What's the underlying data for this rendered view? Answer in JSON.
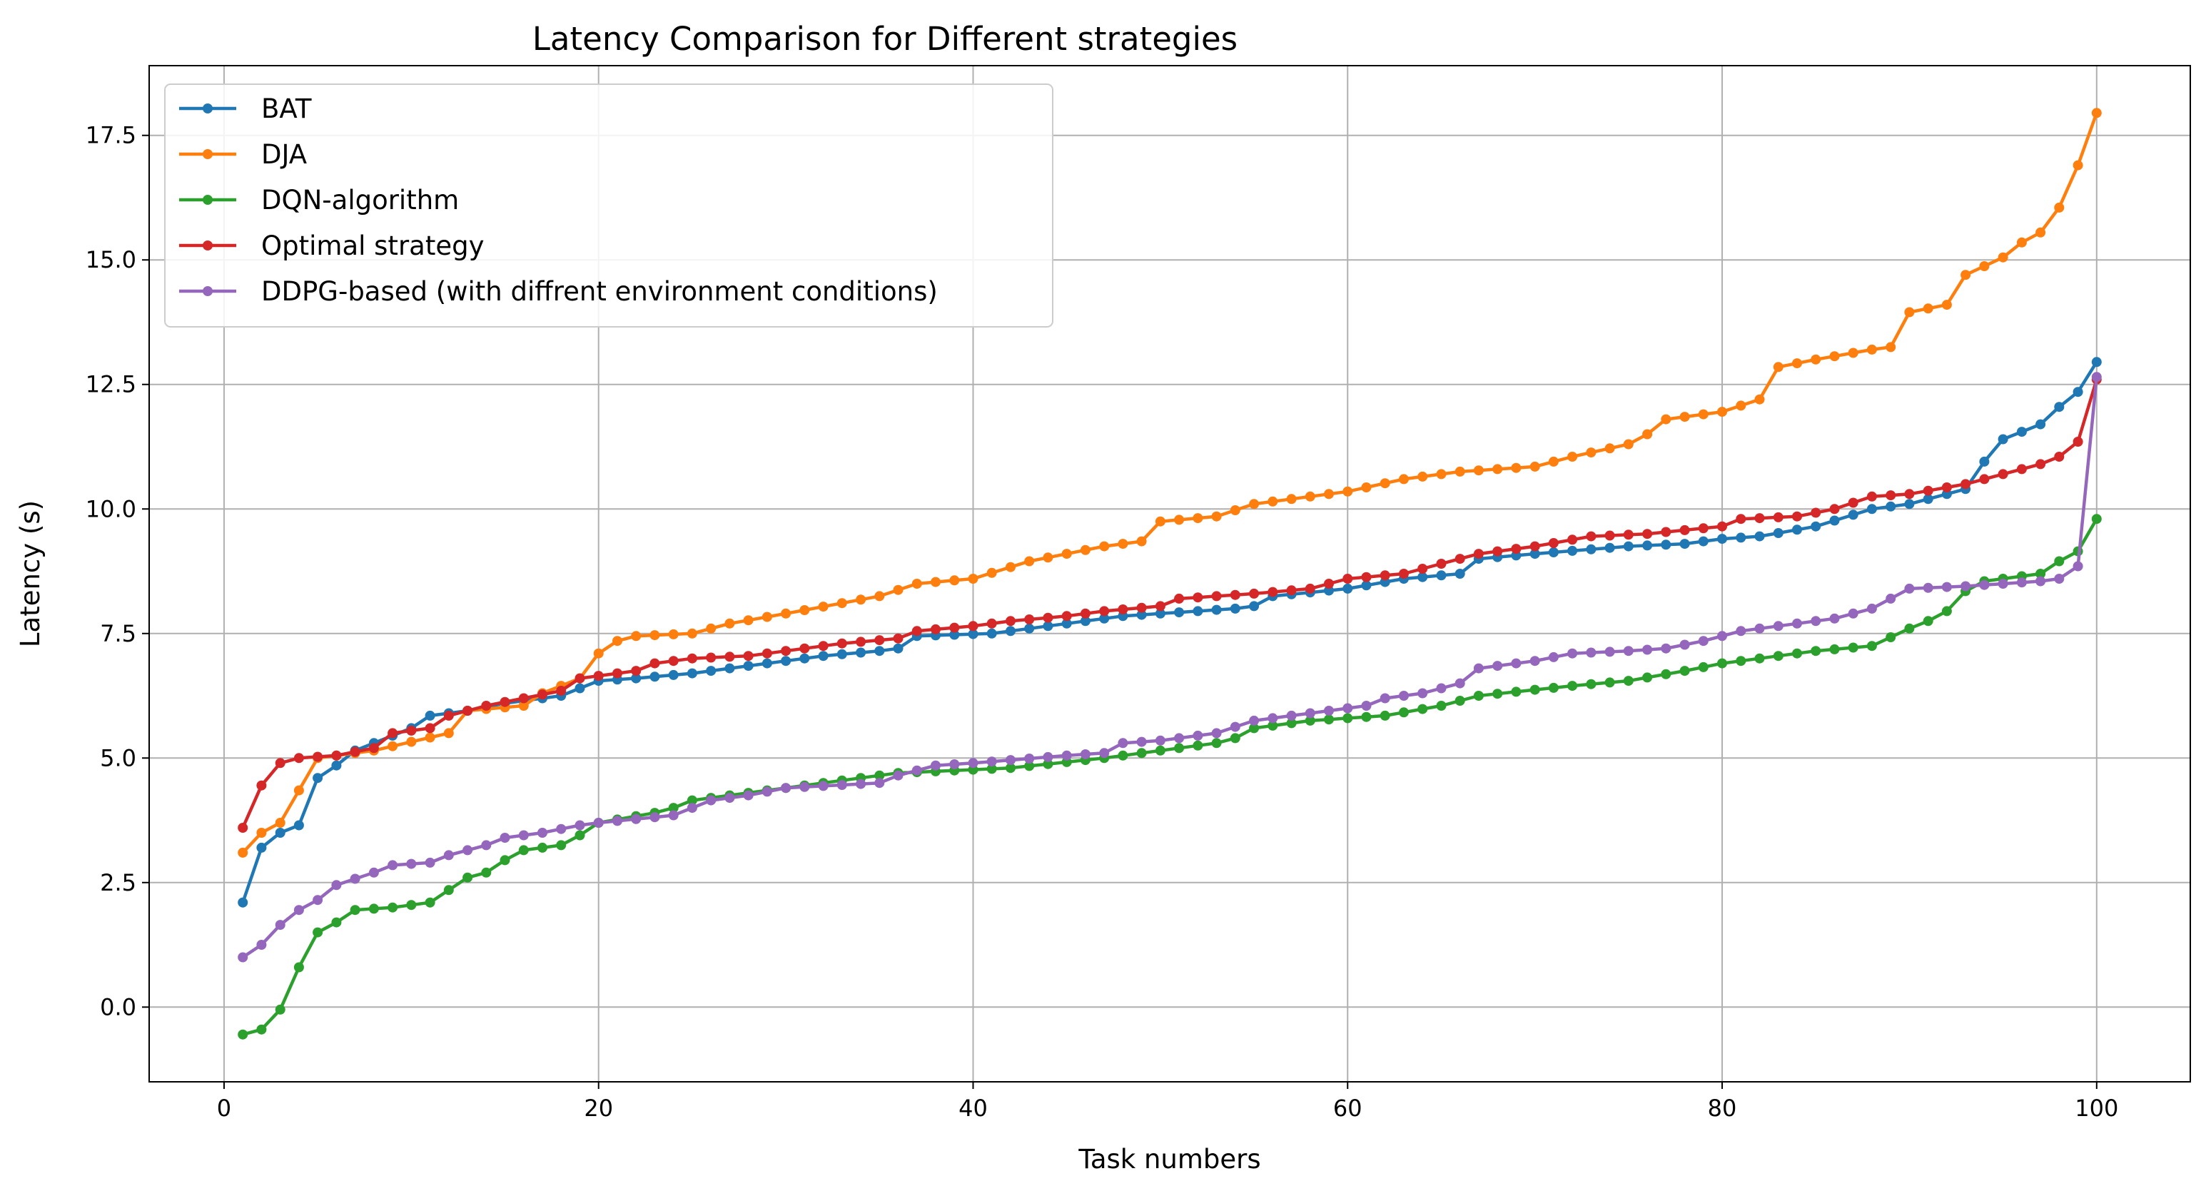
{
  "chart_data": {
    "type": "line",
    "title": "Latency Comparison for Different strategies",
    "xlabel": "Task numbers",
    "ylabel": "Latency (s)",
    "xlim": [
      -4,
      105
    ],
    "ylim": [
      -1.5,
      18.9
    ],
    "xticks": [
      0,
      20,
      40,
      60,
      80,
      100
    ],
    "xtick_labels": [
      "0",
      "20",
      "40",
      "60",
      "80",
      "100"
    ],
    "yticks": [
      0,
      2.5,
      5,
      7.5,
      10,
      12.5,
      15,
      17.5
    ],
    "ytick_labels": [
      "0.0",
      "2.5",
      "5.0",
      "7.5",
      "10.0",
      "12.5",
      "15.0",
      "17.5"
    ],
    "grid": true,
    "legend_position": "top-left",
    "series": [
      {
        "name": "BAT",
        "color": "#1f77b4",
        "anchors": [
          [
            1,
            2.1
          ],
          [
            2,
            3.2
          ],
          [
            3,
            3.5
          ],
          [
            4,
            3.65
          ],
          [
            5,
            4.6
          ],
          [
            6,
            4.85
          ],
          [
            7,
            5.15
          ],
          [
            8,
            5.3
          ],
          [
            10,
            5.6
          ],
          [
            11,
            5.85
          ],
          [
            12,
            5.9
          ],
          [
            13,
            5.95
          ],
          [
            15,
            6.1
          ],
          [
            18,
            6.25
          ],
          [
            20,
            6.55
          ],
          [
            22,
            6.6
          ],
          [
            25,
            6.7
          ],
          [
            28,
            6.85
          ],
          [
            30,
            6.95
          ],
          [
            32,
            7.05
          ],
          [
            35,
            7.15
          ],
          [
            36,
            7.2
          ],
          [
            37,
            7.45
          ],
          [
            41,
            7.5
          ],
          [
            42,
            7.55
          ],
          [
            45,
            7.7
          ],
          [
            48,
            7.85
          ],
          [
            50,
            7.9
          ],
          [
            54,
            8.0
          ],
          [
            55,
            8.05
          ],
          [
            56,
            8.25
          ],
          [
            60,
            8.4
          ],
          [
            63,
            8.6
          ],
          [
            66,
            8.7
          ],
          [
            67,
            9.0
          ],
          [
            70,
            9.1
          ],
          [
            75,
            9.25
          ],
          [
            78,
            9.3
          ],
          [
            80,
            9.4
          ],
          [
            82,
            9.45
          ],
          [
            85,
            9.65
          ],
          [
            88,
            10.0
          ],
          [
            90,
            10.1
          ],
          [
            93,
            10.4
          ],
          [
            94,
            10.95
          ],
          [
            95,
            11.4
          ],
          [
            97,
            11.7
          ],
          [
            98,
            12.05
          ],
          [
            99,
            12.35
          ],
          [
            100,
            12.95
          ]
        ]
      },
      {
        "name": "DJA",
        "color": "#ff7f0e",
        "anchors": [
          [
            1,
            3.1
          ],
          [
            2,
            3.5
          ],
          [
            3,
            3.7
          ],
          [
            4,
            4.35
          ],
          [
            5,
            5.0
          ],
          [
            8,
            5.15
          ],
          [
            12,
            5.5
          ],
          [
            13,
            5.95
          ],
          [
            16,
            6.05
          ],
          [
            17,
            6.3
          ],
          [
            19,
            6.6
          ],
          [
            20,
            7.1
          ],
          [
            21,
            7.35
          ],
          [
            22,
            7.45
          ],
          [
            25,
            7.5
          ],
          [
            27,
            7.7
          ],
          [
            30,
            7.9
          ],
          [
            35,
            8.25
          ],
          [
            37,
            8.5
          ],
          [
            40,
            8.6
          ],
          [
            43,
            8.95
          ],
          [
            45,
            9.1
          ],
          [
            47,
            9.25
          ],
          [
            49,
            9.35
          ],
          [
            50,
            9.75
          ],
          [
            53,
            9.85
          ],
          [
            55,
            10.1
          ],
          [
            60,
            10.35
          ],
          [
            63,
            10.6
          ],
          [
            66,
            10.75
          ],
          [
            70,
            10.85
          ],
          [
            72,
            11.05
          ],
          [
            75,
            11.3
          ],
          [
            76,
            11.5
          ],
          [
            77,
            11.8
          ],
          [
            80,
            11.95
          ],
          [
            82,
            12.2
          ],
          [
            83,
            12.85
          ],
          [
            85,
            13.0
          ],
          [
            88,
            13.2
          ],
          [
            89,
            13.25
          ],
          [
            90,
            13.95
          ],
          [
            92,
            14.1
          ],
          [
            93,
            14.7
          ],
          [
            95,
            15.05
          ],
          [
            96,
            15.35
          ],
          [
            97,
            15.55
          ],
          [
            98,
            16.05
          ],
          [
            99,
            16.9
          ],
          [
            100,
            17.95
          ]
        ]
      },
      {
        "name": "DQN-algorithm",
        "color": "#2ca02c",
        "anchors": [
          [
            1,
            -0.55
          ],
          [
            2,
            -0.45
          ],
          [
            3,
            -0.05
          ],
          [
            4,
            0.8
          ],
          [
            5,
            1.5
          ],
          [
            6,
            1.7
          ],
          [
            7,
            1.95
          ],
          [
            9,
            2.0
          ],
          [
            10,
            2.05
          ],
          [
            11,
            2.1
          ],
          [
            12,
            2.35
          ],
          [
            13,
            2.6
          ],
          [
            14,
            2.7
          ],
          [
            15,
            2.95
          ],
          [
            16,
            3.15
          ],
          [
            18,
            3.25
          ],
          [
            19,
            3.45
          ],
          [
            20,
            3.7
          ],
          [
            23,
            3.9
          ],
          [
            24,
            4.0
          ],
          [
            25,
            4.15
          ],
          [
            27,
            4.25
          ],
          [
            30,
            4.4
          ],
          [
            33,
            4.55
          ],
          [
            36,
            4.7
          ],
          [
            42,
            4.8
          ],
          [
            47,
            5.0
          ],
          [
            50,
            5.15
          ],
          [
            53,
            5.3
          ],
          [
            54,
            5.4
          ],
          [
            55,
            5.6
          ],
          [
            58,
            5.75
          ],
          [
            62,
            5.85
          ],
          [
            65,
            6.05
          ],
          [
            67,
            6.25
          ],
          [
            72,
            6.45
          ],
          [
            75,
            6.55
          ],
          [
            78,
            6.75
          ],
          [
            80,
            6.9
          ],
          [
            83,
            7.05
          ],
          [
            85,
            7.15
          ],
          [
            88,
            7.25
          ],
          [
            90,
            7.6
          ],
          [
            91,
            7.75
          ],
          [
            92,
            7.95
          ],
          [
            93,
            8.35
          ],
          [
            94,
            8.55
          ],
          [
            97,
            8.7
          ],
          [
            98,
            8.95
          ],
          [
            99,
            9.15
          ],
          [
            100,
            9.8
          ]
        ]
      },
      {
        "name": "Optimal strategy",
        "color": "#d62728",
        "anchors": [
          [
            1,
            3.6
          ],
          [
            2,
            4.45
          ],
          [
            3,
            4.9
          ],
          [
            4,
            5.0
          ],
          [
            6,
            5.05
          ],
          [
            8,
            5.2
          ],
          [
            9,
            5.5
          ],
          [
            11,
            5.6
          ],
          [
            12,
            5.85
          ],
          [
            14,
            6.05
          ],
          [
            16,
            6.2
          ],
          [
            18,
            6.35
          ],
          [
            19,
            6.6
          ],
          [
            20,
            6.65
          ],
          [
            22,
            6.75
          ],
          [
            23,
            6.9
          ],
          [
            25,
            7.0
          ],
          [
            28,
            7.05
          ],
          [
            30,
            7.15
          ],
          [
            33,
            7.3
          ],
          [
            36,
            7.4
          ],
          [
            37,
            7.55
          ],
          [
            40,
            7.65
          ],
          [
            42,
            7.75
          ],
          [
            45,
            7.85
          ],
          [
            47,
            7.95
          ],
          [
            50,
            8.05
          ],
          [
            51,
            8.2
          ],
          [
            55,
            8.3
          ],
          [
            58,
            8.4
          ],
          [
            60,
            8.6
          ],
          [
            63,
            8.7
          ],
          [
            67,
            9.1
          ],
          [
            70,
            9.25
          ],
          [
            73,
            9.45
          ],
          [
            76,
            9.5
          ],
          [
            80,
            9.65
          ],
          [
            81,
            9.8
          ],
          [
            84,
            9.85
          ],
          [
            86,
            10.0
          ],
          [
            88,
            10.25
          ],
          [
            90,
            10.3
          ],
          [
            93,
            10.5
          ],
          [
            95,
            10.7
          ],
          [
            97,
            10.9
          ],
          [
            98,
            11.05
          ],
          [
            99,
            11.35
          ],
          [
            100,
            12.6
          ]
        ]
      },
      {
        "name": "DDPG-based (with diffrent environment conditions)",
        "color": "#9467bd",
        "anchors": [
          [
            1,
            1.0
          ],
          [
            2,
            1.25
          ],
          [
            3,
            1.65
          ],
          [
            4,
            1.95
          ],
          [
            5,
            2.15
          ],
          [
            6,
            2.45
          ],
          [
            8,
            2.7
          ],
          [
            9,
            2.85
          ],
          [
            11,
            2.9
          ],
          [
            12,
            3.05
          ],
          [
            14,
            3.25
          ],
          [
            15,
            3.4
          ],
          [
            17,
            3.5
          ],
          [
            19,
            3.65
          ],
          [
            20,
            3.7
          ],
          [
            24,
            3.85
          ],
          [
            26,
            4.15
          ],
          [
            28,
            4.25
          ],
          [
            30,
            4.4
          ],
          [
            35,
            4.5
          ],
          [
            36,
            4.65
          ],
          [
            38,
            4.85
          ],
          [
            40,
            4.9
          ],
          [
            45,
            5.05
          ],
          [
            47,
            5.1
          ],
          [
            48,
            5.3
          ],
          [
            50,
            5.35
          ],
          [
            53,
            5.5
          ],
          [
            55,
            5.75
          ],
          [
            59,
            5.95
          ],
          [
            61,
            6.05
          ],
          [
            62,
            6.2
          ],
          [
            64,
            6.3
          ],
          [
            66,
            6.5
          ],
          [
            67,
            6.8
          ],
          [
            70,
            6.95
          ],
          [
            72,
            7.1
          ],
          [
            75,
            7.15
          ],
          [
            77,
            7.2
          ],
          [
            79,
            7.35
          ],
          [
            80,
            7.45
          ],
          [
            81,
            7.55
          ],
          [
            83,
            7.65
          ],
          [
            86,
            7.8
          ],
          [
            88,
            8.0
          ],
          [
            89,
            8.2
          ],
          [
            90,
            8.4
          ],
          [
            93,
            8.45
          ],
          [
            97,
            8.55
          ],
          [
            98,
            8.6
          ],
          [
            99,
            8.85
          ],
          [
            100,
            12.65
          ]
        ]
      }
    ]
  }
}
